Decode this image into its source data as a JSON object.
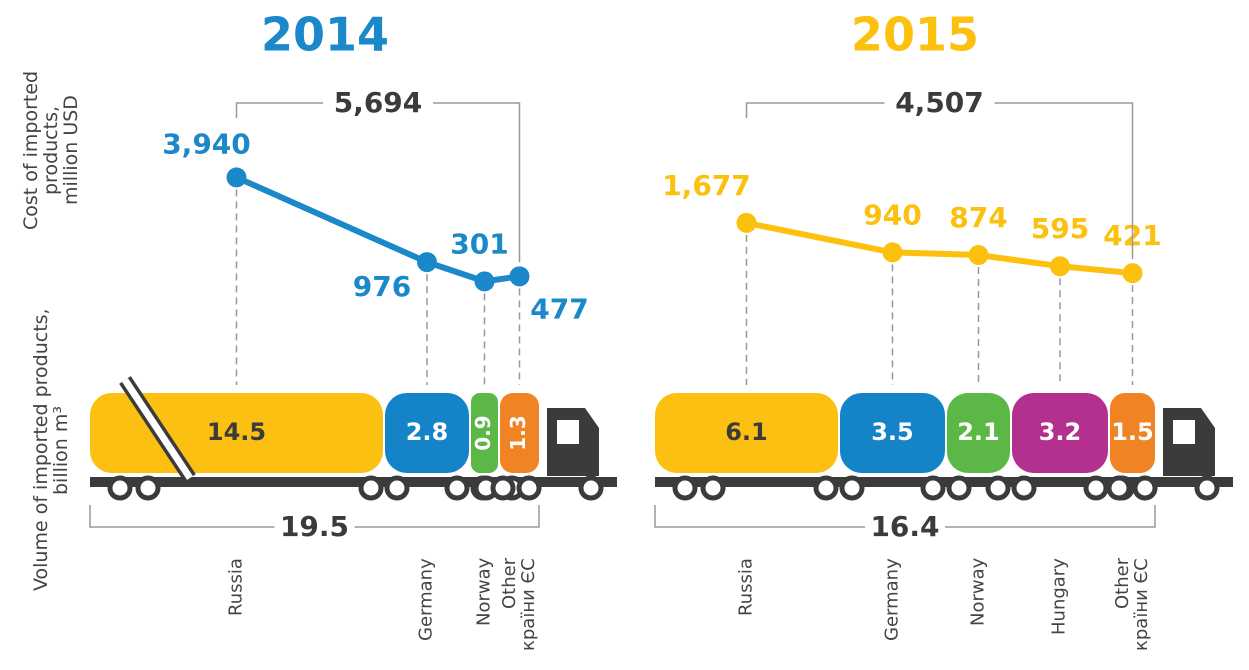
{
  "chart_data": [
    {
      "type": "truck",
      "title": "2014",
      "color": "#1a88c9",
      "y_label": "Cost of imported\nproducts,\nmillion USD",
      "y2_label": "Volume of imported products,\nbillion m³",
      "categories": [
        "Russia",
        "Germany",
        "Norway",
        "Other\nкраїни ЄС"
      ],
      "values": [
        3940,
        976,
        301,
        477
      ],
      "value_labels": [
        "3,940",
        "976",
        "301",
        "477"
      ],
      "total": {
        "value": 5694,
        "label": "5,694"
      },
      "ylim": [
        0,
        7000
      ],
      "volume": {
        "values": [
          14.5,
          2.8,
          0.9,
          1.3
        ],
        "colors": [
          "#fbc012",
          "#1583c8",
          "#5bb746",
          "#f08424"
        ],
        "total": 19.5,
        "broken": 0
      }
    },
    {
      "type": "truck",
      "title": "2015",
      "color": "#fcc00f",
      "categories": [
        "Russia",
        "Germany",
        "Norway",
        "Hungary",
        "Other\nкраїни ЄС"
      ],
      "values": [
        1677,
        940,
        874,
        595,
        421
      ],
      "value_labels": [
        "1,677",
        "940",
        "874",
        "595",
        "421"
      ],
      "total": {
        "value": 4507,
        "label": "4,507"
      },
      "ylim": [
        0,
        5000
      ],
      "volume": {
        "values": [
          6.1,
          3.5,
          2.1,
          3.2,
          1.5
        ],
        "colors": [
          "#fbc012",
          "#1583c8",
          "#5bb746",
          "#b3308f",
          "#f08424"
        ],
        "total": 16.4
      }
    }
  ]
}
